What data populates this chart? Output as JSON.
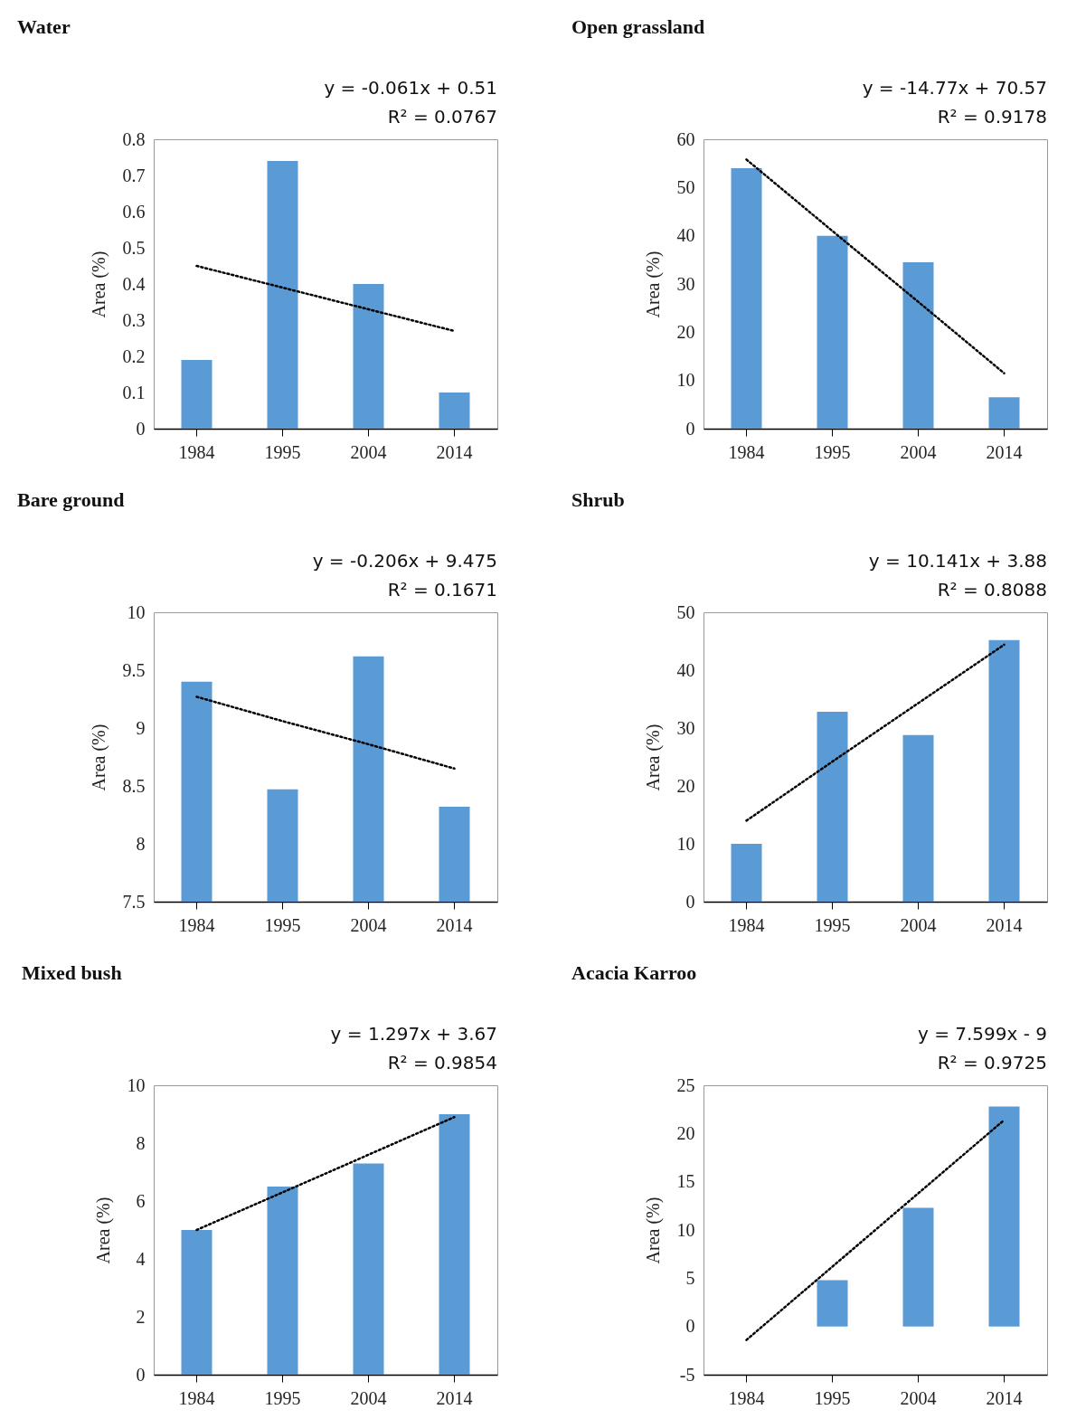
{
  "chart_data": [
    {
      "type": "bar",
      "title": "Water",
      "ylabel": "Area (%)",
      "categories": [
        "1984",
        "1995",
        "2004",
        "2014"
      ],
      "ylim": [
        0,
        0.8
      ],
      "yticks": [
        0,
        0.1,
        0.2,
        0.3,
        0.4,
        0.5,
        0.6,
        0.7,
        0.8
      ],
      "annotations": [
        "y = -0.061x + 0.51",
        "R² = 0.0767"
      ],
      "series": [
        {
          "color": "#5b9bd5",
          "values": [
            0.19,
            0.74,
            0.4,
            0.1
          ]
        },
        {
          "type": "line",
          "color": "#000000",
          "line_style": "dotted",
          "values": [
            0.45,
            0.39,
            0.33,
            0.27
          ]
        }
      ]
    },
    {
      "type": "bar",
      "title": "Open grassland",
      "ylabel": "Area (%)",
      "categories": [
        "1984",
        "1995",
        "2004",
        "2014"
      ],
      "ylim": [
        0,
        60
      ],
      "yticks": [
        0,
        10,
        20,
        30,
        40,
        50,
        60
      ],
      "annotations": [
        "y = -14.77x + 70.57",
        "R² = 0.9178"
      ],
      "series": [
        {
          "color": "#5b9bd5",
          "values": [
            54,
            40,
            34.5,
            6.5
          ]
        },
        {
          "type": "line",
          "color": "#000000",
          "line_style": "dotted",
          "values": [
            55.8,
            41,
            26.3,
            11.5
          ]
        }
      ]
    },
    {
      "type": "bar",
      "title": "Bare ground",
      "ylabel": "Area (%)",
      "categories": [
        "1984",
        "1995",
        "2004",
        "2014"
      ],
      "ylim": [
        7.5,
        10
      ],
      "yticks": [
        7.5,
        8,
        8.5,
        9,
        9.5,
        10
      ],
      "annotations": [
        "y = -0.206x + 9.475",
        "R² = 0.1671"
      ],
      "series": [
        {
          "color": "#5b9bd5",
          "values": [
            9.4,
            8.47,
            9.62,
            8.32
          ]
        },
        {
          "type": "line",
          "color": "#000000",
          "line_style": "dotted",
          "values": [
            9.27,
            9.06,
            8.86,
            8.65
          ]
        }
      ]
    },
    {
      "type": "bar",
      "title": "Shrub",
      "ylabel": "Area (%)",
      "categories": [
        "1984",
        "1995",
        "2004",
        "2014"
      ],
      "ylim": [
        0,
        50
      ],
      "yticks": [
        0,
        10,
        20,
        30,
        40,
        50
      ],
      "annotations": [
        "y = 10.141x + 3.88",
        "R² = 0.8088"
      ],
      "series": [
        {
          "color": "#5b9bd5",
          "values": [
            10,
            32.8,
            28.8,
            45.2
          ]
        },
        {
          "type": "line",
          "color": "#000000",
          "line_style": "dotted",
          "values": [
            14,
            24.2,
            34.3,
            44.4
          ]
        }
      ]
    },
    {
      "type": "bar",
      "title": "Mixed bush",
      "ylabel": "Area (%)",
      "categories": [
        "1984",
        "1995",
        "2004",
        "2014"
      ],
      "ylim": [
        0,
        10
      ],
      "yticks": [
        0,
        2,
        4,
        6,
        8,
        10
      ],
      "annotations": [
        "y = 1.297x + 3.67",
        "R² = 0.9854"
      ],
      "series": [
        {
          "color": "#5b9bd5",
          "values": [
            5,
            6.5,
            7.3,
            9
          ]
        },
        {
          "type": "line",
          "color": "#000000",
          "line_style": "dotted",
          "values": [
            5,
            6.3,
            7.6,
            8.9
          ]
        }
      ]
    },
    {
      "type": "bar",
      "title": "Acacia Karroo",
      "ylabel": "Area (%)",
      "categories": [
        "1984",
        "1995",
        "2004",
        "2014"
      ],
      "ylim": [
        -5,
        25
      ],
      "yticks": [
        -5,
        0,
        5,
        10,
        15,
        20,
        25
      ],
      "annotations": [
        "y = 7.599x - 9",
        "R² = 0.9725"
      ],
      "series": [
        {
          "color": "#5b9bd5",
          "values": [
            0,
            4.8,
            12.3,
            22.8
          ]
        },
        {
          "type": "line",
          "color": "#000000",
          "line_style": "dotted",
          "values": [
            -1.4,
            6.2,
            13.8,
            21.4
          ]
        }
      ]
    }
  ]
}
